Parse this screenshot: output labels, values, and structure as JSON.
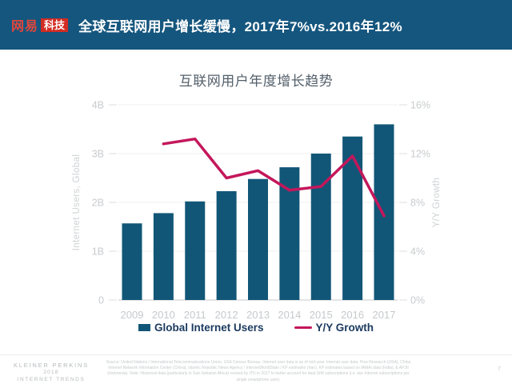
{
  "header": {
    "logo_text_1": "网易",
    "logo_text_2": "科技",
    "title": "全球互联网用户增长缓慢，2017年7%vs.2016年12%"
  },
  "chart_data": {
    "type": "bar",
    "title": "互联网用户年度增长趋势",
    "categories": [
      "2009",
      "2010",
      "2011",
      "2012",
      "2013",
      "2014",
      "2015",
      "2016",
      "2017"
    ],
    "series": [
      {
        "name": "Global Internet Users",
        "type": "bar",
        "axis": "left",
        "unit": "B",
        "values": [
          1.57,
          1.78,
          2.02,
          2.23,
          2.48,
          2.72,
          3.0,
          3.35,
          3.6
        ]
      },
      {
        "name": "Y/Y Growth",
        "type": "line",
        "axis": "right",
        "unit": "%",
        "values": [
          null,
          12.8,
          13.2,
          10.0,
          10.6,
          9.0,
          9.3,
          11.8,
          6.9
        ]
      }
    ],
    "left_axis": {
      "label": "Internet Users, Global",
      "ticks": [
        "0",
        "1B",
        "2B",
        "3B",
        "4B"
      ],
      "range": [
        0,
        4
      ]
    },
    "right_axis": {
      "label": "Y/Y Growth",
      "ticks": [
        "0%",
        "4%",
        "8%",
        "12%",
        "16%"
      ],
      "range": [
        0,
        16
      ]
    },
    "legend": [
      {
        "label": "Global Internet Users",
        "marker": "square",
        "color": "#125677"
      },
      {
        "label": "Y/Y Growth",
        "marker": "line",
        "color": "#C4175B"
      }
    ],
    "grid": "horizontal",
    "legend_position": "bottom"
  },
  "footer": {
    "brand_lines": [
      "KLEINER PERKINS",
      "2018",
      "INTERNET TRENDS"
    ],
    "source": "Source: United Nations / International Telecommunications Union, USA Census Bureau. Internet user data is as of mid-year. Internet user data: Pew Research (USA), China Internet Network Information Center (China), Islamic Republic News Agency / InternetWorldStats / KP estimates (Iran), KP estimates based on IAMAI data (India), & APJII (Indonesia). Note: Historical data (particularly in Sub-Saharan Africa) revised by ITU in 2017 to better account for dual-SIM subscriptions (i.e. two Internet subscriptions per single smartphone user).",
    "page_number": "7"
  },
  "colors": {
    "header_bg": "#15567E",
    "logo_red": "#D22C23",
    "bar": "#125677",
    "line": "#C4175B",
    "axis_text": "#C8CBCD",
    "legend_text": "#1B3A5F"
  }
}
